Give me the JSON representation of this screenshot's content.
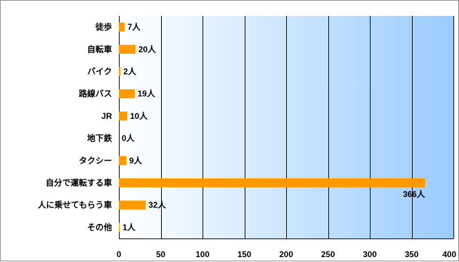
{
  "chart_data": {
    "type": "bar",
    "orientation": "horizontal",
    "title": "",
    "xlabel": "",
    "ylabel": "",
    "categories": [
      "徒歩",
      "自転車",
      "バイク",
      "路線バス",
      "JR",
      "地下鉄",
      "タクシー",
      "自分で運転する車",
      "人に乗せてもらう車",
      "その他"
    ],
    "values": [
      7,
      20,
      2,
      19,
      10,
      0,
      9,
      366,
      32,
      1
    ],
    "value_labels": [
      "7人",
      "20人",
      "2人",
      "19人",
      "10人",
      "0人",
      "9人",
      "366人",
      "32人",
      "1人"
    ],
    "xlim": [
      0,
      400
    ],
    "xticks": [
      "0",
      "50",
      "100",
      "150",
      "200",
      "250",
      "300",
      "350",
      "400"
    ],
    "xtick_values": [
      0,
      50,
      100,
      150,
      200,
      250,
      300,
      350,
      400
    ],
    "grid": "vertical",
    "legend": "none",
    "colors": {
      "bar": "#FF9900",
      "background_left": "#FFFFFF",
      "background_right": "#99CCFF",
      "gridline": "#000000"
    }
  }
}
